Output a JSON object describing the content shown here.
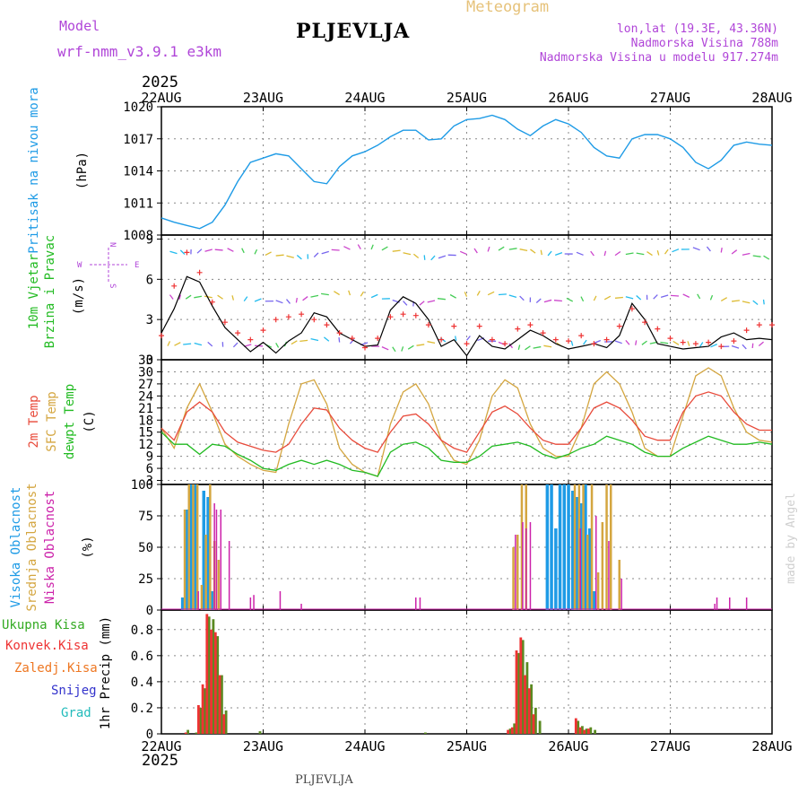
{
  "header": {
    "model_label": "Model",
    "model_name": "wrf-nmm_v3.9.1  e3km",
    "station": "PLJEVLJA",
    "product": "Meteogram",
    "lonlat": "lon,lat (19.3E, 43.36N)",
    "altitude": "Nadmorska Visina 788m",
    "model_altitude": "Nadmorska Visina u modelu 917.274m",
    "year": "2025",
    "footer_station": "PLJEVLJA",
    "credit": "made by Angel"
  },
  "colors": {
    "pressure": "#1e9be6",
    "wind_green": "#22bb22",
    "temp": "#e84a3a",
    "sfc": "#d4a640",
    "dewpt": "#22bb22",
    "high_cloud": "#1e9be6",
    "mid_cloud": "#d4a640",
    "low_cloud": "#cc22aa",
    "total_precip": "#33aa22",
    "conv": "#ee3333",
    "frz": "#ee7722",
    "snow": "#3333cc",
    "hail": "#22bbbb",
    "purple": "#b045d8"
  },
  "chart_data": [
    {
      "type": "line",
      "panel": "pressure",
      "title": "Pritisak na nivou mora",
      "ylabel": "(hPa)",
      "x_categories": [
        "22AUG",
        "23AUG",
        "24AUG",
        "25AUG",
        "26AUG",
        "27AUG",
        "28AUG"
      ],
      "xlim": [
        0,
        144
      ],
      "ylim": [
        1008,
        1020
      ],
      "yticks": [
        "1008",
        "1011",
        "1014",
        "1017",
        "1020"
      ],
      "series": [
        {
          "name": "MSLP",
          "x": [
            0,
            3,
            6,
            9,
            12,
            15,
            18,
            21,
            24,
            27,
            30,
            33,
            36,
            39,
            42,
            45,
            48,
            51,
            54,
            57,
            60,
            63,
            66,
            69,
            72,
            75,
            78,
            81,
            84,
            87,
            90,
            93,
            96,
            99,
            102,
            105,
            108,
            111,
            114,
            117,
            120,
            123,
            126,
            129,
            132,
            135,
            138,
            141,
            144
          ],
          "values": [
            1009.6,
            1009.2,
            1008.9,
            1008.6,
            1009.2,
            1010.8,
            1013.0,
            1014.8,
            1015.2,
            1015.6,
            1015.4,
            1014.2,
            1013.0,
            1012.8,
            1014.4,
            1015.4,
            1015.8,
            1016.4,
            1017.2,
            1017.8,
            1017.8,
            1016.9,
            1017.0,
            1018.2,
            1018.8,
            1018.9,
            1019.2,
            1018.8,
            1017.9,
            1017.3,
            1018.2,
            1018.8,
            1018.4,
            1017.6,
            1016.2,
            1015.4,
            1015.2,
            1017.0,
            1017.4,
            1017.4,
            1017.0,
            1016.2,
            1014.8,
            1014.2,
            1015.0,
            1016.4,
            1016.7,
            1016.5,
            1016.4
          ]
        }
      ]
    },
    {
      "type": "line",
      "panel": "wind",
      "title_lines": [
        "10m Vjetar",
        "Brzina i Pravac"
      ],
      "ylabel": "(m/s)",
      "compass": {
        "n": "N",
        "s": "S",
        "e": "E",
        "w": "W"
      },
      "xlim": [
        0,
        144
      ],
      "ylim": [
        0,
        9.3
      ],
      "yticks": [
        "0",
        "3",
        "6",
        "9"
      ],
      "series": [
        {
          "name": "wind speed",
          "x": [
            0,
            3,
            6,
            9,
            12,
            15,
            18,
            21,
            24,
            27,
            30,
            33,
            36,
            39,
            42,
            45,
            48,
            51,
            54,
            57,
            60,
            63,
            66,
            69,
            72,
            75,
            78,
            81,
            84,
            87,
            90,
            93,
            96,
            99,
            102,
            105,
            108,
            111,
            114,
            117,
            120,
            123,
            126,
            129,
            132,
            135,
            138,
            141,
            144
          ],
          "values": [
            2.0,
            3.8,
            6.2,
            5.8,
            4.0,
            2.4,
            1.5,
            0.6,
            1.3,
            0.5,
            1.4,
            2.0,
            3.5,
            3.2,
            2.0,
            1.5,
            1.0,
            1.1,
            3.7,
            4.7,
            4.2,
            3.0,
            1.0,
            1.5,
            0.3,
            1.8,
            1.0,
            0.8,
            1.5,
            2.2,
            1.8,
            1.2,
            0.8,
            1.0,
            1.2,
            0.9,
            1.8,
            4.2,
            3.0,
            1.2,
            1.0,
            0.8,
            0.9,
            1.0,
            1.7,
            2.0,
            1.5,
            1.6,
            1.5
          ]
        },
        {
          "name": "gust",
          "x": [
            0,
            3,
            6,
            9,
            12,
            15,
            18,
            21,
            24,
            27,
            30,
            33,
            36,
            39,
            42,
            45,
            48,
            51,
            54,
            57,
            60,
            63,
            66,
            69,
            72,
            75,
            78,
            81,
            84,
            87,
            90,
            93,
            96,
            99,
            102,
            105,
            108,
            111,
            114,
            117,
            120,
            123,
            126,
            129,
            132,
            135,
            138,
            141,
            144
          ],
          "values": [
            1.8,
            5.5,
            8.0,
            6.5,
            4.3,
            2.8,
            2.0,
            1.5,
            2.2,
            3.0,
            3.2,
            3.4,
            3.0,
            2.6,
            2.0,
            1.6,
            0.9,
            1.6,
            3.2,
            3.4,
            3.3,
            2.6,
            1.5,
            2.5,
            1.2,
            2.5,
            1.5,
            1.2,
            2.3,
            2.6,
            2.0,
            1.5,
            1.4,
            1.8,
            1.2,
            1.5,
            2.5,
            3.8,
            2.8,
            2.3,
            1.6,
            1.3,
            1.2,
            1.3,
            1.0,
            1.4,
            2.2,
            2.6,
            2.6
          ]
        }
      ]
    },
    {
      "type": "line",
      "panel": "temperature",
      "title_lines": [
        "2m Temp",
        "SFC Temp",
        "dewpt Temp"
      ],
      "ylabel": "(C)",
      "xlim": [
        0,
        144
      ],
      "ylim": [
        2,
        33
      ],
      "yticks": [
        "3",
        "6",
        "9",
        "12",
        "15",
        "18",
        "21",
        "24",
        "27",
        "30",
        "33"
      ],
      "series": [
        {
          "name": "2m Temp",
          "x": [
            0,
            3,
            6,
            9,
            12,
            15,
            18,
            21,
            24,
            27,
            30,
            33,
            36,
            39,
            42,
            45,
            48,
            51,
            54,
            57,
            60,
            63,
            66,
            69,
            72,
            75,
            78,
            81,
            84,
            87,
            90,
            93,
            96,
            99,
            102,
            105,
            108,
            111,
            114,
            117,
            120,
            123,
            126,
            129,
            132,
            135,
            138,
            141,
            144
          ],
          "values": [
            16,
            13,
            20,
            22.5,
            20,
            15,
            12.5,
            11.5,
            10.5,
            10,
            12,
            17,
            21,
            20.5,
            16,
            13,
            11,
            10,
            15,
            19,
            19.5,
            17,
            13,
            11,
            10,
            15,
            20,
            21.5,
            19.5,
            16,
            13,
            12,
            12,
            16,
            21,
            22.5,
            21,
            18,
            14,
            13,
            13,
            20,
            24,
            25,
            24,
            20,
            17,
            15.5,
            15.5
          ]
        },
        {
          "name": "SFC Temp",
          "x": [
            0,
            3,
            6,
            9,
            12,
            15,
            18,
            21,
            24,
            27,
            30,
            33,
            36,
            39,
            42,
            45,
            48,
            51,
            54,
            57,
            60,
            63,
            66,
            69,
            72,
            75,
            78,
            81,
            84,
            87,
            90,
            93,
            96,
            99,
            102,
            105,
            108,
            111,
            114,
            117,
            120,
            123,
            126,
            129,
            132,
            135,
            138,
            141,
            144
          ],
          "values": [
            16,
            11,
            21,
            27,
            20,
            12,
            9,
            7,
            5.5,
            5,
            17,
            27,
            28,
            22,
            11,
            7,
            5,
            4,
            17,
            25,
            27,
            22,
            13,
            8,
            7,
            13,
            24,
            28,
            26,
            17,
            11,
            9,
            9,
            16,
            27,
            30,
            27,
            20,
            11,
            9,
            9,
            19,
            29,
            31,
            29,
            21,
            15,
            13,
            12.5
          ]
        },
        {
          "name": "dewpt Temp",
          "x": [
            0,
            3,
            6,
            9,
            12,
            15,
            18,
            21,
            24,
            27,
            30,
            33,
            36,
            39,
            42,
            45,
            48,
            51,
            54,
            57,
            60,
            63,
            66,
            69,
            72,
            75,
            78,
            81,
            84,
            87,
            90,
            93,
            96,
            99,
            102,
            105,
            108,
            111,
            114,
            117,
            120,
            123,
            126,
            129,
            132,
            135,
            138,
            141,
            144
          ],
          "values": [
            15,
            12,
            12,
            9.5,
            12,
            11.5,
            9.5,
            8,
            6,
            5.5,
            7,
            8,
            7,
            8,
            7,
            5.5,
            5,
            4,
            10,
            12,
            12.5,
            11,
            8,
            7.5,
            7.5,
            9,
            11.5,
            12,
            12.5,
            11.5,
            9.5,
            8.5,
            9.5,
            11,
            12,
            14,
            13,
            12,
            10,
            9,
            9,
            11,
            12.5,
            14,
            13,
            12,
            12,
            12.5,
            12
          ]
        }
      ]
    },
    {
      "type": "bar",
      "panel": "cloud",
      "title_lines": [
        "Visoka Oblacnost",
        "Srednja Oblacnost",
        "Niska Oblacnost"
      ],
      "ylabel": "(%)",
      "xlim": [
        0,
        144
      ],
      "ylim": [
        0,
        100
      ],
      "yticks": [
        "0",
        "25",
        "50",
        "75",
        "100"
      ],
      "series": [
        {
          "name": "Visoka",
          "x": [
            5,
            6,
            7,
            8,
            10,
            11,
            12,
            88,
            91,
            92,
            93,
            94,
            95,
            96,
            97,
            98,
            99,
            100,
            101,
            102
          ],
          "values": [
            10,
            80,
            100,
            100,
            95,
            90,
            15,
            0,
            100,
            100,
            65,
            100,
            100,
            100,
            95,
            90,
            85,
            100,
            65,
            15
          ]
        },
        {
          "name": "Srednja",
          "x": [
            5.5,
            6.5,
            7.5,
            8.5,
            9.5,
            10.5,
            11.5,
            12.5,
            13.5,
            83,
            84,
            85,
            86,
            97.5,
            98.5,
            99.5,
            100.5,
            101.5,
            103,
            104,
            105,
            106,
            108
          ],
          "values": [
            80,
            100,
            100,
            100,
            20,
            60,
            100,
            55,
            40,
            50,
            60,
            100,
            100,
            100,
            100,
            100,
            60,
            100,
            30,
            70,
            100,
            100,
            40
          ]
        },
        {
          "name": "Niska",
          "x": [
            8.7,
            12.5,
            13,
            14,
            16,
            21,
            21.8,
            28,
            33,
            60,
            61,
            83.5,
            85.2,
            86,
            87,
            98.8,
            102.5,
            105.5,
            108.5,
            130.5,
            131,
            134,
            138
          ],
          "values": [
            15,
            85,
            80,
            80,
            55,
            10,
            12,
            15,
            5,
            10,
            10,
            60,
            70,
            65,
            70,
            65,
            75,
            55,
            25,
            5,
            10,
            10,
            10
          ]
        }
      ]
    },
    {
      "type": "bar",
      "panel": "precip",
      "title": "1hr Precip",
      "ylabel": "(mm)",
      "legend": [
        "Ukupna Kisa",
        "Konvek.Kisa",
        "Zaledj.Kisa",
        "Snijeg",
        "Grad"
      ],
      "x_categories": [
        "22AUG",
        "23AUG",
        "24AUG",
        "25AUG",
        "26AUG",
        "27AUG",
        "28AUG"
      ],
      "xlim": [
        0,
        144
      ],
      "ylim": [
        0,
        0.95
      ],
      "yticks": [
        "0",
        "0.2",
        "0.4",
        "0.6",
        "0.8"
      ],
      "series": [
        {
          "name": "Ukupna Kisa",
          "x": [
            6,
            8,
            9,
            10,
            11,
            12,
            13,
            14,
            15,
            23,
            62,
            82,
            83,
            84,
            85,
            86,
            87,
            88,
            89,
            98,
            99,
            100,
            101,
            102
          ],
          "values": [
            0.03,
            0.01,
            0.2,
            0.35,
            0.9,
            0.88,
            0.75,
            0.45,
            0.18,
            0.02,
            0.01,
            0.04,
            0.08,
            0.62,
            0.72,
            0.55,
            0.38,
            0.2,
            0.1,
            0.1,
            0.06,
            0.04,
            0.05,
            0.03
          ]
        },
        {
          "name": "Konvek.Kisa",
          "x": [
            6,
            9,
            10,
            11,
            12,
            13,
            14,
            15,
            82,
            83,
            84,
            85,
            86,
            87,
            88,
            98,
            99,
            100,
            101
          ],
          "values": [
            0.01,
            0.22,
            0.38,
            0.92,
            0.8,
            0.78,
            0.45,
            0.15,
            0.03,
            0.05,
            0.64,
            0.74,
            0.45,
            0.35,
            0.15,
            0.12,
            0.05,
            0.03,
            0.04
          ]
        }
      ]
    }
  ]
}
